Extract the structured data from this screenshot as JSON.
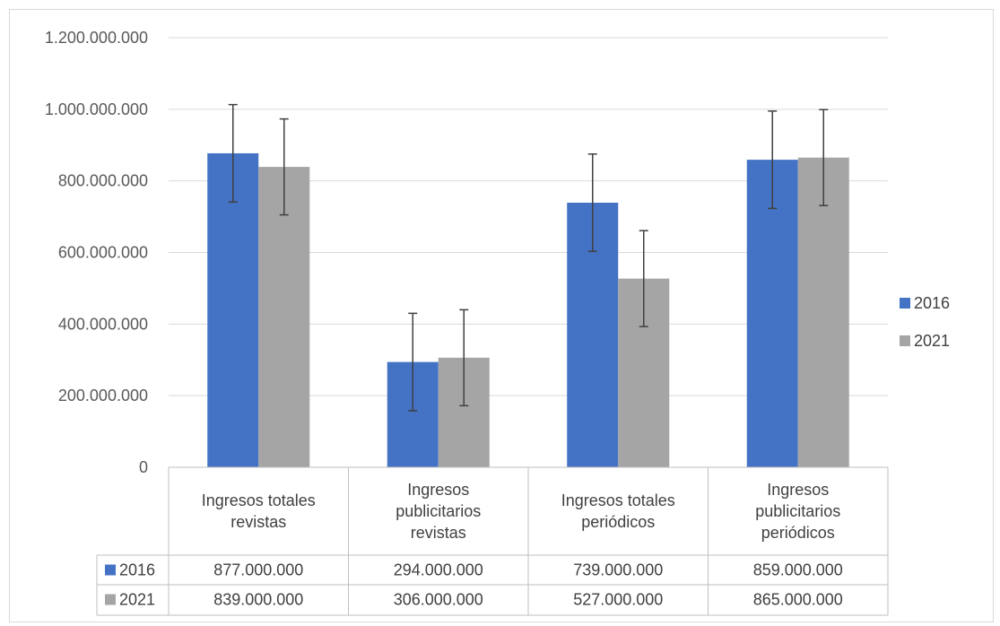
{
  "chart_data": {
    "type": "bar",
    "categories": [
      [
        "Ingresos totales",
        "revistas"
      ],
      [
        "Ingresos",
        "publicitarios",
        "revistas"
      ],
      [
        "Ingresos totales",
        "periódicos"
      ],
      [
        "Ingresos",
        "publicitarios",
        "periódicos"
      ]
    ],
    "series": [
      {
        "name": "2016",
        "color": "#4472c4",
        "values": [
          877000000,
          294000000,
          739000000,
          859000000
        ],
        "error": 136000000
      },
      {
        "name": "2021",
        "color": "#a5a5a5",
        "values": [
          839000000,
          306000000,
          527000000,
          865000000
        ],
        "error": 134000000
      }
    ],
    "ylim": [
      0,
      1200000000
    ],
    "yticks": [
      0,
      200000000,
      400000000,
      600000000,
      800000000,
      1000000000,
      1200000000
    ],
    "ytick_labels": [
      "0",
      "200.000.000",
      "400.000.000",
      "600.000.000",
      "800.000.000",
      "1.000.000.000",
      "1.200.000.000"
    ],
    "table_cells": [
      [
        "877.000.000",
        "294.000.000",
        "739.000.000",
        "859.000.000"
      ],
      [
        "839.000.000",
        "306.000.000",
        "527.000.000",
        "865.000.000"
      ]
    ],
    "grid": true,
    "legend_position": "right",
    "data_table": true
  }
}
